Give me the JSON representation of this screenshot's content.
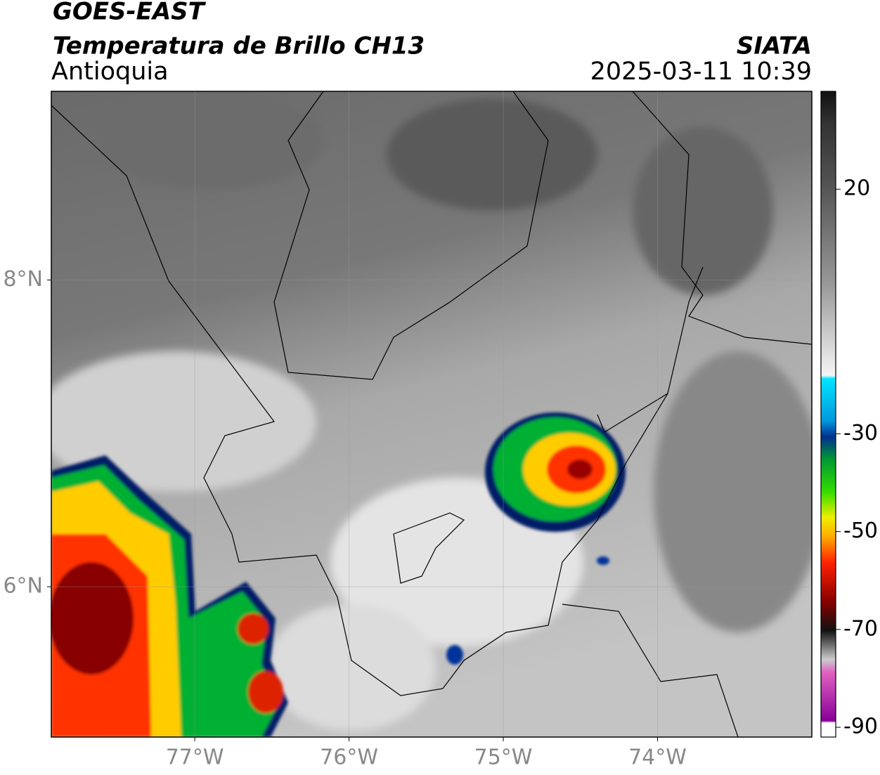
{
  "header": {
    "line1": "GOES-EAST",
    "line2": "Temperatura de Brillo CH13",
    "subtitle": "Antioquia",
    "org": "SIATA",
    "datetime": "2025-03-11 10:39"
  },
  "map": {
    "xlim": [
      -77.93,
      -73.0
    ],
    "ylim": [
      5.02,
      9.23
    ],
    "xticks": [
      {
        "value": -77,
        "label": "77°W"
      },
      {
        "value": -76,
        "label": "76°W"
      },
      {
        "value": -75,
        "label": "75°W"
      },
      {
        "value": -74,
        "label": "74°W"
      }
    ],
    "yticks": [
      {
        "value": 8,
        "label": "8°N"
      },
      {
        "value": 6,
        "label": "6°N"
      }
    ]
  },
  "colorbar": {
    "lim": [
      -92,
      40
    ],
    "ticks": [
      20,
      -30,
      -50,
      -70,
      -90
    ]
  }
}
